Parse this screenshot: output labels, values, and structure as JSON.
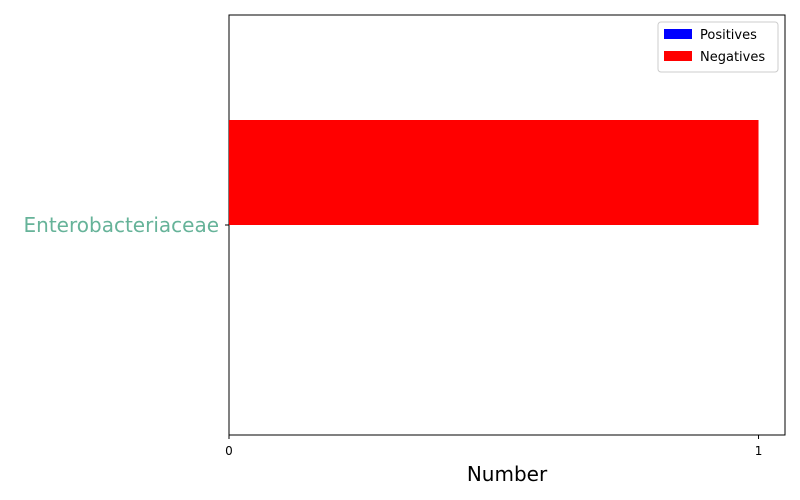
{
  "chart_data": {
    "type": "bar",
    "orientation": "horizontal",
    "stacked": false,
    "categories": [
      "Enterobacteriaceae"
    ],
    "category_label_color": "#66b399",
    "series": [
      {
        "name": "Positives",
        "color": "#0000ff",
        "values": [
          0
        ]
      },
      {
        "name": "Negatives",
        "color": "#ff0000",
        "values": [
          1
        ]
      }
    ],
    "xlabel": "Number",
    "ylabel": "",
    "title": "",
    "xlim": [
      0,
      1.05
    ],
    "xticks": [
      0,
      1
    ],
    "grid": false,
    "legend": {
      "placement": "upper-right"
    }
  }
}
